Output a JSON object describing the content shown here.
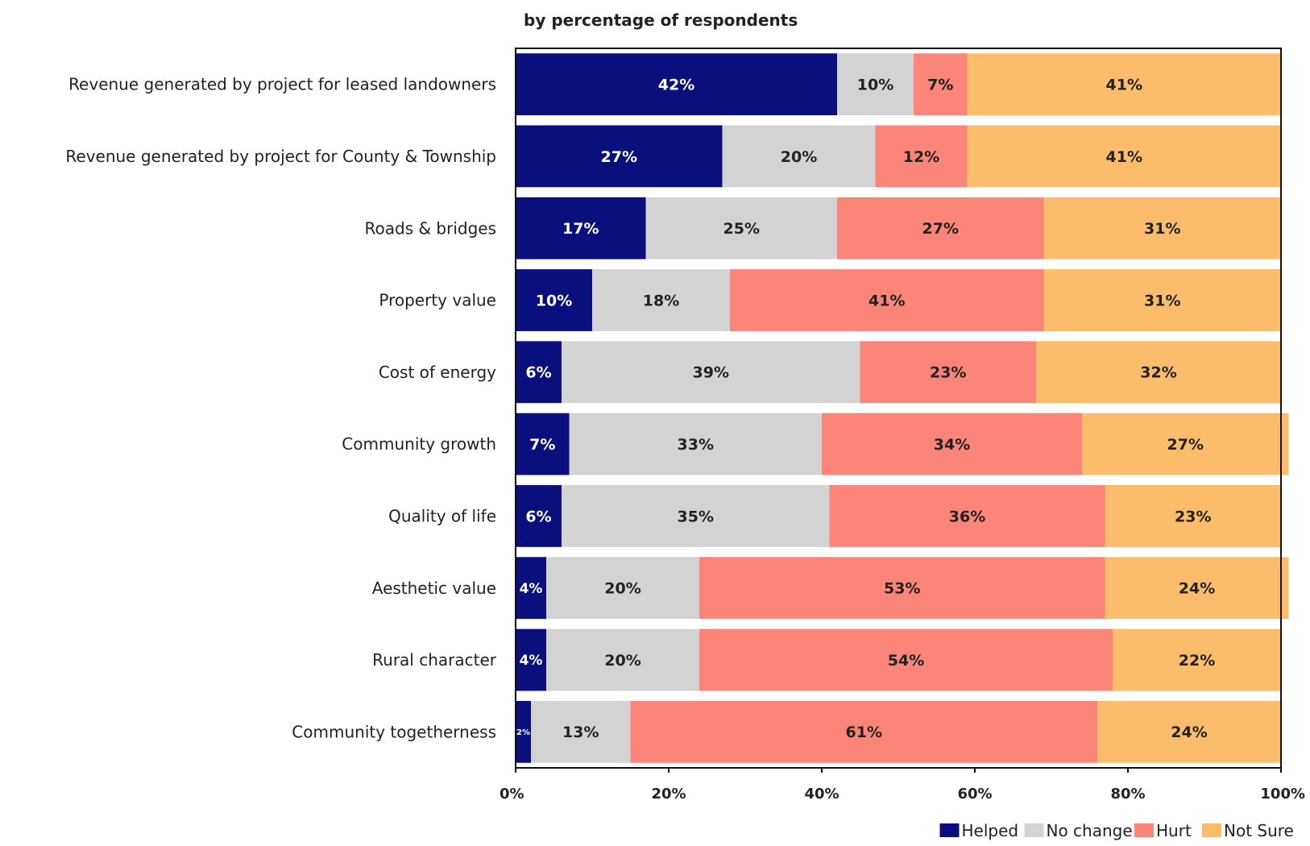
{
  "chart_data": {
    "type": "bar",
    "orientation": "horizontal",
    "stacked": "percent",
    "subtitle": "by percentage of respondents",
    "categories": [
      "Revenue generated by project for leased landowners",
      "Revenue generated by project for County & Township",
      "Roads & bridges",
      "Property value",
      "Cost of energy",
      "Community growth",
      "Quality of life",
      "Aesthetic value",
      "Rural character",
      "Community togetherness"
    ],
    "series": [
      {
        "name": "Helped",
        "color": "#0b0f7e",
        "label_color": "#ffffff",
        "values": [
          42,
          27,
          17,
          10,
          6,
          7,
          6,
          4,
          4,
          2
        ]
      },
      {
        "name": "No change",
        "color": "#d3d3d3",
        "label_color": "#222222",
        "values": [
          10,
          20,
          25,
          18,
          39,
          33,
          35,
          20,
          20,
          13
        ]
      },
      {
        "name": "Hurt",
        "color": "#fa8578",
        "label_color": "#222222",
        "values": [
          7,
          12,
          27,
          41,
          23,
          34,
          36,
          53,
          54,
          61
        ]
      },
      {
        "name": "Not Sure",
        "color": "#fbbd6b",
        "label_color": "#222222",
        "values": [
          41,
          41,
          31,
          31,
          32,
          27,
          23,
          24,
          22,
          24
        ]
      }
    ],
    "data_labels": [
      [
        "42%",
        "27%",
        "17%",
        "10%",
        "6%",
        "7%",
        "6%",
        "4%",
        "4%",
        "2%"
      ],
      [
        "10%",
        "20%",
        "25%",
        "18%",
        "39%",
        "33%",
        "35%",
        "20%",
        "20%",
        "13%"
      ],
      [
        "7%",
        "12%",
        "27%",
        "41%",
        "23%",
        "34%",
        "36%",
        "53%",
        "54%",
        "61%"
      ],
      [
        "41%",
        "41%",
        "31%",
        "31%",
        "32%",
        "27%",
        "23%",
        "24%",
        "22%",
        "24%"
      ]
    ],
    "x_ticks": [
      "0%",
      "20%",
      "40%",
      "60%",
      "80%",
      "100%"
    ],
    "xlim": [
      0,
      100
    ],
    "grid": false,
    "legend_position": "bottom-right"
  }
}
